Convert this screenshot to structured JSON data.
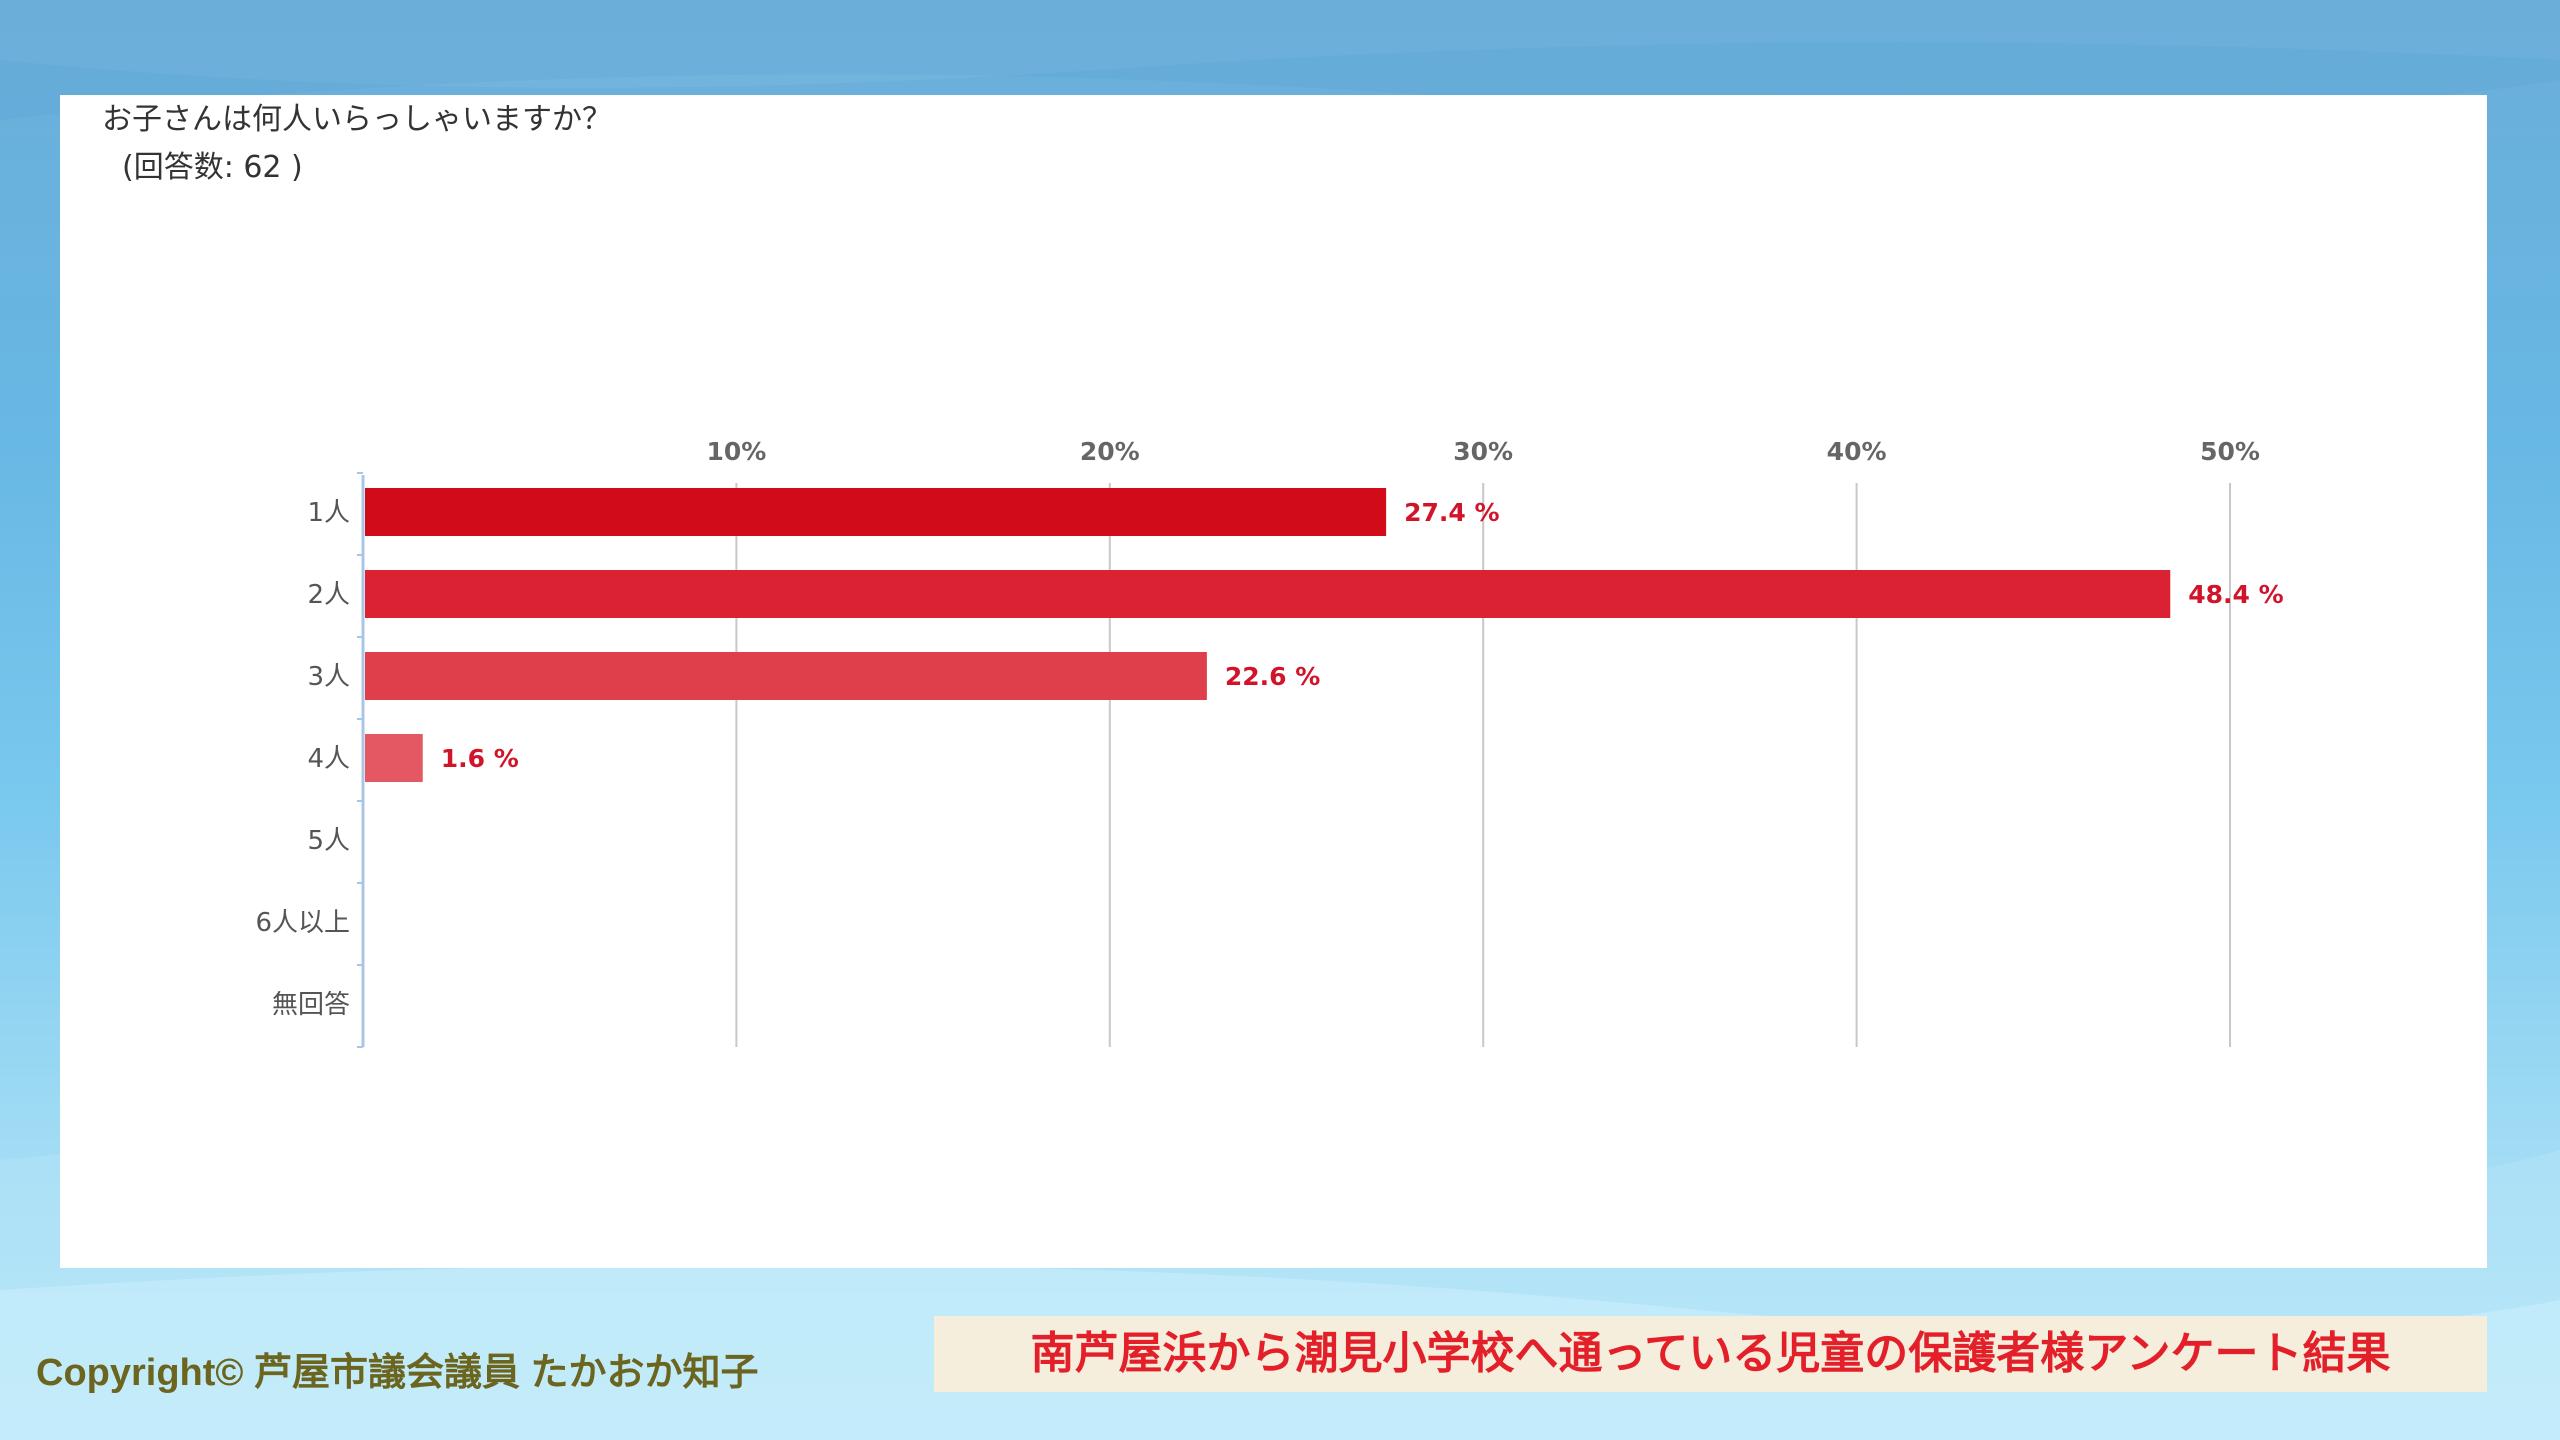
{
  "question": {
    "title": "お子さんは何人いらっしゃいますか？",
    "respondents": "(回答数: 62 )"
  },
  "chart_data": {
    "type": "bar",
    "orientation": "horizontal",
    "categories": [
      "1人",
      "2人",
      "3人",
      "4人",
      "5人",
      "6人以上",
      "無回答"
    ],
    "values": [
      27.4,
      48.4,
      22.6,
      1.6,
      0,
      0,
      0
    ],
    "value_labels": [
      "27.4 %",
      "48.4 %",
      "22.6 %",
      "1.6 %",
      "",
      "",
      ""
    ],
    "x_ticks": [
      "10%",
      "20%",
      "30%",
      "40%",
      "50%"
    ],
    "x_tick_values": [
      10,
      20,
      30,
      40,
      50
    ],
    "xlim": [
      0,
      50
    ],
    "grid": true,
    "axis_position": "top",
    "colors": [
      "#d20b1b",
      "#da2233",
      "#df3f4a",
      "#e45863",
      "#e45863",
      "#e45863",
      "#e45863"
    ],
    "label_color": "#d2142a",
    "grid_color": "#c8c8c8",
    "axis_color": "#a8c6e6"
  },
  "footer": {
    "copyright": "Copyright© 芦屋市議会議員 たかおか知子",
    "banner": "南芦屋浜から潮見小学校へ通っている児童の保護者様アンケート結果"
  }
}
